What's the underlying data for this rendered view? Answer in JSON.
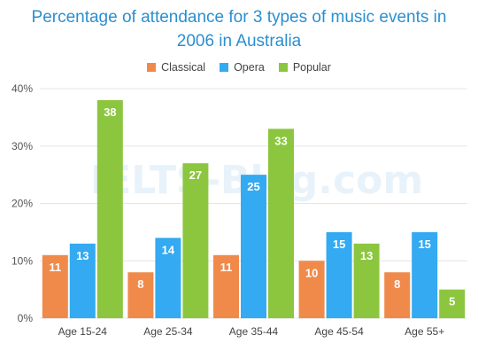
{
  "header": {
    "title_line1": "Percentage of attendance for 3 types of music events in",
    "title_line2": "2006 in Australia"
  },
  "watermark": "IELTS-Blog.com",
  "colors": {
    "Classical": "#f08a4b",
    "Opera": "#33aaf2",
    "Popular": "#8cc63f"
  },
  "chart_data": {
    "type": "bar",
    "title": "Percentage of attendance for 3 types of music events in 2006 in Australia",
    "categories": [
      "Age 15-24",
      "Age 25-34",
      "Age 35-44",
      "Age 45-54",
      "Age 55+"
    ],
    "series": [
      {
        "name": "Classical",
        "values": [
          11,
          8,
          11,
          10,
          8
        ]
      },
      {
        "name": "Opera",
        "values": [
          13,
          14,
          25,
          15,
          15
        ]
      },
      {
        "name": "Popular",
        "values": [
          38,
          27,
          33,
          13,
          5
        ]
      }
    ],
    "yticks": [
      "0%",
      "10%",
      "20%",
      "30%",
      "40%"
    ],
    "ylim": [
      0,
      40
    ],
    "grid": true,
    "legend": "top-center",
    "data_labels": true
  }
}
